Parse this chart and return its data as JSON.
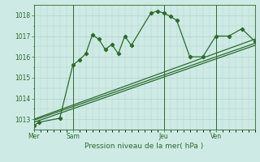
{
  "title": "Pression niveau de la mer( hPa )",
  "bg_color": "#ceeae4",
  "grid_color": "#b0d4cc",
  "line_color": "#2d6a2d",
  "ylim": [
    1012.5,
    1018.5
  ],
  "yticks": [
    1013,
    1014,
    1015,
    1016,
    1017,
    1018
  ],
  "day_labels": [
    "Mer",
    "Sam",
    "Jeu",
    "Ven"
  ],
  "day_positions": [
    0,
    3,
    10,
    14
  ],
  "series1_x": [
    0,
    0.4,
    2,
    3,
    3.5,
    4,
    4.5,
    5,
    5.5,
    6,
    6.5,
    7,
    7.5,
    9,
    9.5,
    10,
    10.5,
    11,
    12,
    13,
    14,
    15,
    16,
    17
  ],
  "series1_y": [
    1012.7,
    1012.85,
    1013.05,
    1015.6,
    1015.85,
    1016.15,
    1017.05,
    1016.85,
    1016.35,
    1016.6,
    1016.15,
    1017.0,
    1016.55,
    1018.1,
    1018.2,
    1018.1,
    1017.95,
    1017.75,
    1016.0,
    1016.0,
    1017.0,
    1017.0,
    1017.35,
    1016.75
  ],
  "series2_x": [
    0,
    17
  ],
  "series2_y": [
    1013.0,
    1016.85
  ],
  "series3_x": [
    0,
    17
  ],
  "series3_y": [
    1012.95,
    1016.65
  ],
  "series4_x": [
    0,
    17
  ],
  "series4_y": [
    1012.85,
    1016.55
  ],
  "xmin": 0,
  "xmax": 17,
  "vline_positions": [
    3,
    10,
    14
  ],
  "marker_size": 2.2,
  "line_width": 0.9
}
